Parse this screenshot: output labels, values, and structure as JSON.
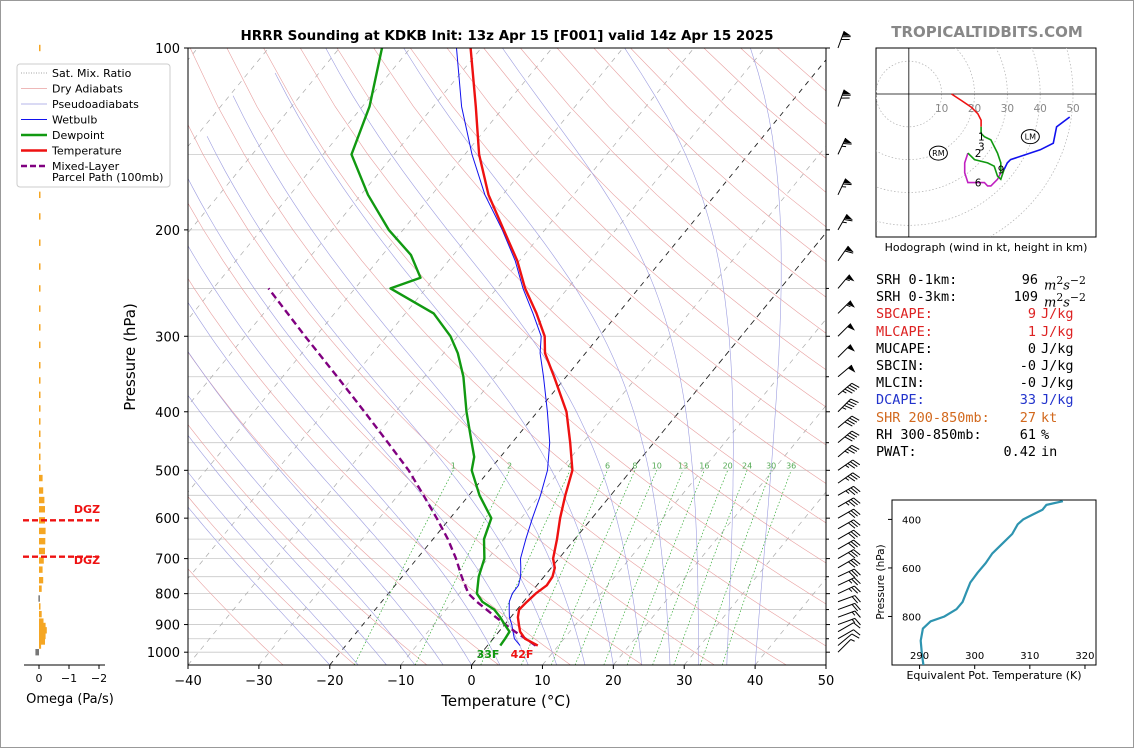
{
  "title": "HRRR Sounding at KDKB Init: 13z Apr 15 [F001] valid 14z Apr 15 2025",
  "brand": "TROPICALTIDBITS.COM",
  "colors": {
    "temperature": "#ee1111",
    "dewpoint": "#119911",
    "wetbulb": "#1111ee",
    "parcel": "#800080",
    "dgz": "#ee1111",
    "omega": "#f5a623",
    "theta_e": "#2e94b0",
    "hodo_0_1": "#ee1111",
    "hodo_1_3": "#119911",
    "hodo_3_6": "#c020c0",
    "hodo_6_9": "#119911",
    "hodo_9_up": "#1111ee"
  },
  "legend": {
    "items": [
      {
        "label": "Sat. Mix. Ratio",
        "style": "mixratio"
      },
      {
        "label": "Dry Adiabats",
        "style": "dry"
      },
      {
        "label": "Pseudoadiabats",
        "style": "moist"
      },
      {
        "label": "Wetbulb",
        "style": "wetbulb"
      },
      {
        "label": "Dewpoint",
        "style": "dewpoint"
      },
      {
        "label": "Temperature",
        "style": "temperature"
      },
      {
        "label": "Mixed-Layer",
        "style": "parcel"
      }
    ],
    "parcel_line2": "Parcel Path (100mb)"
  },
  "chart_data": [
    {
      "type": "line",
      "name": "skew-t",
      "xlabel": "Temperature (°C)",
      "ylabel": "Pressure (hPa)",
      "xlim": [
        -40,
        50
      ],
      "ylim": [
        1050,
        100
      ],
      "y_scale": "log",
      "skewed_isotherms": true,
      "xticks": [
        "−40",
        "−30",
        "−20",
        "−10",
        "0",
        "10",
        "20",
        "30",
        "40",
        "50"
      ],
      "yticks": [
        "100",
        "200",
        "300",
        "400",
        "500",
        "600",
        "700",
        "800",
        "900",
        "1000"
      ],
      "temperature": [
        [
          975,
          7.1
        ],
        [
          950,
          4.5
        ],
        [
          925,
          3.0
        ],
        [
          900,
          2.0
        ],
        [
          875,
          1.0
        ],
        [
          850,
          0.3
        ],
        [
          825,
          0.5
        ],
        [
          800,
          0.8
        ],
        [
          775,
          1.4
        ],
        [
          750,
          1.2
        ],
        [
          725,
          0.5
        ],
        [
          700,
          -0.8
        ],
        [
          650,
          -2.5
        ],
        [
          600,
          -4.5
        ],
        [
          550,
          -6.4
        ],
        [
          500,
          -8.3
        ],
        [
          450,
          -11.8
        ],
        [
          400,
          -15.9
        ],
        [
          350,
          -21.7
        ],
        [
          320,
          -25.7
        ],
        [
          300,
          -27.7
        ],
        [
          275,
          -31.5
        ],
        [
          250,
          -36.0
        ],
        [
          225,
          -40.3
        ],
        [
          200,
          -45.8
        ],
        [
          175,
          -52.0
        ],
        [
          150,
          -58.0
        ],
        [
          125,
          -64.0
        ],
        [
          100,
          -71.5
        ]
      ],
      "dewpoint": [
        [
          975,
          1.8
        ],
        [
          950,
          1.7
        ],
        [
          925,
          1.5
        ],
        [
          900,
          0.0
        ],
        [
          875,
          -1.5
        ],
        [
          850,
          -3.2
        ],
        [
          825,
          -5.8
        ],
        [
          800,
          -7.5
        ],
        [
          750,
          -9.2
        ],
        [
          700,
          -10.5
        ],
        [
          650,
          -12.8
        ],
        [
          600,
          -14.2
        ],
        [
          550,
          -18.5
        ],
        [
          500,
          -22.5
        ],
        [
          475,
          -23.7
        ],
        [
          450,
          -25.7
        ],
        [
          400,
          -30.0
        ],
        [
          350,
          -34.5
        ],
        [
          320,
          -38.0
        ],
        [
          300,
          -41.0
        ],
        [
          275,
          -46.0
        ],
        [
          250,
          -55.0
        ],
        [
          240,
          -52.0
        ],
        [
          220,
          -56.0
        ],
        [
          200,
          -62.0
        ],
        [
          175,
          -69.0
        ],
        [
          150,
          -76.0
        ],
        [
          125,
          -79.0
        ],
        [
          100,
          -84.0
        ]
      ],
      "wetbulb": [
        [
          975,
          4.6
        ],
        [
          950,
          3.0
        ],
        [
          925,
          2.0
        ],
        [
          900,
          1.0
        ],
        [
          875,
          -0.2
        ],
        [
          850,
          -1.1
        ],
        [
          825,
          -2.0
        ],
        [
          800,
          -2.5
        ],
        [
          775,
          -2.6
        ],
        [
          750,
          -3.3
        ],
        [
          725,
          -4.3
        ],
        [
          700,
          -5.4
        ],
        [
          650,
          -6.9
        ],
        [
          600,
          -8.4
        ],
        [
          550,
          -9.9
        ],
        [
          500,
          -11.8
        ],
        [
          450,
          -14.7
        ],
        [
          400,
          -18.6
        ],
        [
          350,
          -23.2
        ],
        [
          320,
          -26.4
        ],
        [
          300,
          -28.2
        ],
        [
          275,
          -32.0
        ],
        [
          250,
          -36.3
        ],
        [
          225,
          -40.6
        ],
        [
          200,
          -46.0
        ],
        [
          175,
          -52.5
        ],
        [
          150,
          -59.0
        ],
        [
          125,
          -66.0
        ],
        [
          100,
          -73.5
        ]
      ],
      "parcel": [
        [
          975,
          6.8
        ],
        [
          950,
          4.6
        ],
        [
          925,
          2.3
        ],
        [
          900,
          0.1
        ],
        [
          875,
          -2.1
        ],
        [
          850,
          -4.3
        ],
        [
          825,
          -6.6
        ],
        [
          800,
          -8.7
        ],
        [
          750,
          -11.6
        ],
        [
          700,
          -14.5
        ],
        [
          650,
          -17.9
        ],
        [
          600,
          -21.9
        ],
        [
          550,
          -26.4
        ],
        [
          500,
          -31.4
        ],
        [
          450,
          -37.5
        ],
        [
          400,
          -44.4
        ],
        [
          350,
          -52.3
        ],
        [
          300,
          -61.5
        ],
        [
          250,
          -72.2
        ]
      ],
      "mixing_ratio_labels": [
        "1",
        "2",
        "4",
        "6",
        "8",
        "10",
        "13",
        "16",
        "20",
        "24",
        "30",
        "36"
      ],
      "mixing_ratios": [
        1,
        2,
        4,
        6,
        8,
        10,
        13,
        16,
        20,
        24,
        30,
        36
      ],
      "surface_labels": {
        "dewpoint": "33F",
        "temperature": "42F"
      }
    },
    {
      "type": "bar",
      "name": "omega",
      "xlabel": "Omega (Pa/s)",
      "xlim": [
        0.5,
        -2.2
      ],
      "xticks": [
        "0",
        "−1",
        "−2"
      ],
      "values_pa_s": [
        [
          1000,
          0.12
        ],
        [
          975,
          -0.07
        ],
        [
          960,
          -0.2
        ],
        [
          940,
          -0.22
        ],
        [
          920,
          -0.26
        ],
        [
          905,
          -0.22
        ],
        [
          890,
          -0.15
        ],
        [
          865,
          -0.09
        ],
        [
          840,
          -0.04
        ],
        [
          815,
          0.02
        ],
        [
          785,
          -0.09
        ],
        [
          760,
          -0.14
        ],
        [
          730,
          -0.12
        ],
        [
          705,
          -0.16
        ],
        [
          680,
          -0.2
        ],
        [
          655,
          -0.21
        ],
        [
          630,
          -0.22
        ],
        [
          605,
          -0.2
        ],
        [
          580,
          -0.2
        ],
        [
          560,
          -0.18
        ],
        [
          540,
          -0.14
        ],
        [
          515,
          -0.12
        ],
        [
          495,
          -0.05
        ],
        [
          475,
          -0.04
        ],
        [
          455,
          -0.03
        ],
        [
          435,
          -0.04
        ],
        [
          415,
          -0.04
        ],
        [
          395,
          -0.03
        ],
        [
          375,
          -0.04
        ],
        [
          355,
          -0.03
        ],
        [
          335,
          0.0
        ],
        [
          310,
          -0.02
        ],
        [
          290,
          -0.02
        ],
        [
          270,
          -0.02
        ],
        [
          250,
          -0.02
        ],
        [
          230,
          -0.04
        ],
        [
          210,
          -0.04
        ],
        [
          190,
          -0.03
        ],
        [
          175,
          -0.02
        ],
        [
          160,
          -0.03
        ],
        [
          145,
          -0.03
        ],
        [
          130,
          -0.03
        ],
        [
          115,
          -0.02
        ],
        [
          100,
          -0.02
        ]
      ],
      "dgz_bottom_label": "DGZ",
      "dgz_top_label": "DGZ",
      "dgz_top_hpa": 605,
      "dgz_bottom_hpa": 695
    },
    {
      "type": "line",
      "name": "hodograph",
      "caption": "Hodograph (wind in kt, height in km)",
      "range_rings_kt": [
        10,
        20,
        30,
        40,
        50
      ],
      "ring_labels": [
        "10",
        "20",
        "30",
        "40",
        "50"
      ],
      "height_labels": [
        "1",
        "2",
        "3",
        "6",
        "9"
      ],
      "storm_motion_labels": {
        "right": "RM",
        "left": "LM"
      },
      "u_range_kt": [
        -10,
        57
      ],
      "v_range_kt": [
        -44,
        14
      ],
      "uv_kt": [
        [
          13,
          0
        ],
        [
          16,
          -2
        ],
        [
          19,
          -4
        ],
        [
          21,
          -6
        ],
        [
          22,
          -8
        ],
        [
          22,
          -10
        ],
        [
          22,
          -12
        ],
        [
          23,
          -13
        ],
        [
          25,
          -14
        ],
        [
          26,
          -16
        ],
        [
          27,
          -18
        ],
        [
          28,
          -21
        ],
        [
          28,
          -24
        ],
        [
          27,
          -26
        ],
        [
          25,
          -28
        ],
        [
          24,
          -28
        ],
        [
          23,
          -27
        ],
        [
          18,
          -27
        ],
        [
          17,
          -24
        ],
        [
          17,
          -21
        ],
        [
          18,
          -18
        ],
        [
          20,
          -20
        ],
        [
          24,
          -21
        ],
        [
          26,
          -22
        ],
        [
          27,
          -25
        ],
        [
          28,
          -26
        ],
        [
          29,
          -23
        ],
        [
          30,
          -21
        ],
        [
          31,
          -20
        ],
        [
          40,
          -17
        ],
        [
          44,
          -15
        ],
        [
          45,
          -10
        ],
        [
          49,
          -7
        ]
      ],
      "height_marks_uv": {
        "1": [
          23,
          -13
        ],
        "2": [
          22,
          -18
        ],
        "3": [
          23,
          -16
        ],
        "6": [
          22,
          -27
        ],
        "9": [
          29,
          -23
        ]
      },
      "rm_uv": [
        9,
        -18
      ],
      "lm_uv": [
        37,
        -13
      ]
    },
    {
      "type": "line",
      "name": "theta-e",
      "xlabel": "Equivalent Pot. Temperature (K)",
      "ylabel": "Pressure (hPa)",
      "xlim": [
        285,
        322
      ],
      "ylim": [
        1000,
        320
      ],
      "xticks": [
        "290",
        "300",
        "310",
        "320"
      ],
      "yticks": [
        "400",
        "600",
        "800"
      ],
      "values": [
        [
          1000,
          290.7
        ],
        [
          950,
          290.4
        ],
        [
          900,
          290.2
        ],
        [
          850,
          290.6
        ],
        [
          820,
          292.0
        ],
        [
          800,
          294.5
        ],
        [
          770,
          296.7
        ],
        [
          740,
          297.8
        ],
        [
          700,
          298.5
        ],
        [
          660,
          299.2
        ],
        [
          620,
          300.5
        ],
        [
          580,
          302.0
        ],
        [
          540,
          303.2
        ],
        [
          500,
          305.0
        ],
        [
          460,
          306.8
        ],
        [
          420,
          307.8
        ],
        [
          400,
          308.8
        ],
        [
          380,
          310.5
        ],
        [
          360,
          312.3
        ],
        [
          340,
          313.0
        ],
        [
          325,
          316.0
        ]
      ]
    }
  ],
  "indices": [
    {
      "label": "SRH 0-1km:",
      "value": "96",
      "unit_html": "<i>m</i><sup>2</sup><i>s</i><sup>−2</sup>",
      "color": "#000000"
    },
    {
      "label": "SRH 0-3km:",
      "value": "109",
      "unit_html": "<i>m</i><sup>2</sup><i>s</i><sup>−2</sup>",
      "color": "#000000"
    },
    {
      "label": "SBCAPE:",
      "value": "9",
      "unit": "J/kg",
      "color": "#dd2222"
    },
    {
      "label": "MLCAPE:",
      "value": "1",
      "unit": "J/kg",
      "color": "#dd2222"
    },
    {
      "label": "MUCAPE:",
      "value": "0",
      "unit": "J/kg",
      "color": "#000000"
    },
    {
      "label": "SBCIN:",
      "value": "-0",
      "unit": "J/kg",
      "color": "#000000"
    },
    {
      "label": "MLCIN:",
      "value": "-0",
      "unit": "J/kg",
      "color": "#000000"
    },
    {
      "label": "DCAPE:",
      "value": "33",
      "unit": "J/kg",
      "color": "#2233cc"
    },
    {
      "label": "SHR 200-850mb:",
      "value": "27",
      "unit": "kt",
      "color": "#d2691e"
    },
    {
      "label": "RH 300-850mb:",
      "value": "61",
      "unit": "%",
      "color": "#000000"
    },
    {
      "label": "PWAT:",
      "value": "0.42",
      "unit": "in",
      "color": "#000000"
    }
  ],
  "winds": [
    [
      100,
      20,
      70
    ],
    [
      125,
      20,
      70
    ],
    [
      150,
      25,
      65
    ],
    [
      175,
      25,
      65
    ],
    [
      200,
      30,
      65
    ],
    [
      225,
      35,
      60
    ],
    [
      250,
      40,
      55
    ],
    [
      275,
      45,
      55
    ],
    [
      300,
      45,
      50
    ],
    [
      325,
      45,
      50
    ],
    [
      350,
      50,
      50
    ],
    [
      375,
      50,
      45
    ],
    [
      400,
      45,
      45
    ],
    [
      425,
      50,
      40
    ],
    [
      450,
      50,
      40
    ],
    [
      475,
      50,
      35
    ],
    [
      500,
      55,
      35
    ],
    [
      525,
      55,
      35
    ],
    [
      550,
      60,
      35
    ],
    [
      575,
      60,
      35
    ],
    [
      600,
      60,
      30
    ],
    [
      625,
      60,
      30
    ],
    [
      650,
      60,
      30
    ],
    [
      675,
      60,
      30
    ],
    [
      700,
      60,
      30
    ],
    [
      725,
      60,
      30
    ],
    [
      750,
      65,
      30
    ],
    [
      775,
      65,
      25
    ],
    [
      800,
      65,
      25
    ],
    [
      825,
      70,
      20
    ],
    [
      850,
      70,
      20
    ],
    [
      875,
      70,
      15
    ],
    [
      900,
      70,
      15
    ],
    [
      925,
      60,
      10
    ],
    [
      950,
      60,
      10
    ],
    [
      975,
      50,
      10
    ],
    [
      1000,
      45,
      5
    ]
  ]
}
